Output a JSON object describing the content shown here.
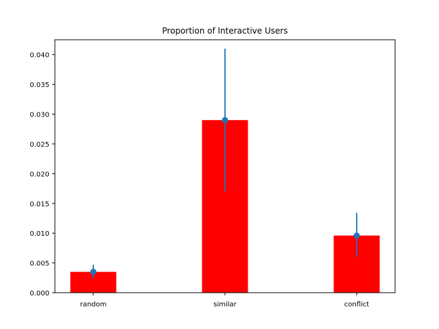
{
  "chart_data": {
    "type": "bar",
    "title": "Proportion of Interactive Users",
    "xlabel": "",
    "ylabel": "",
    "categories": [
      "random",
      "similar",
      "conflict"
    ],
    "values": [
      0.0035,
      0.029,
      0.0096
    ],
    "error_low": [
      0.0024,
      0.017,
      0.006
    ],
    "error_high": [
      0.0047,
      0.041,
      0.0134
    ],
    "ylim": [
      0,
      0.0425
    ],
    "yticks": [
      0.0,
      0.005,
      0.01,
      0.015,
      0.02,
      0.025,
      0.03,
      0.035,
      0.04
    ],
    "ytick_labels": [
      "0.000",
      "0.005",
      "0.010",
      "0.015",
      "0.020",
      "0.025",
      "0.030",
      "0.035",
      "0.040"
    ],
    "grid": false,
    "colors": {
      "bar": "#ff0000",
      "marker": "#1f77b4",
      "errorbar": "#1f77b4"
    }
  }
}
